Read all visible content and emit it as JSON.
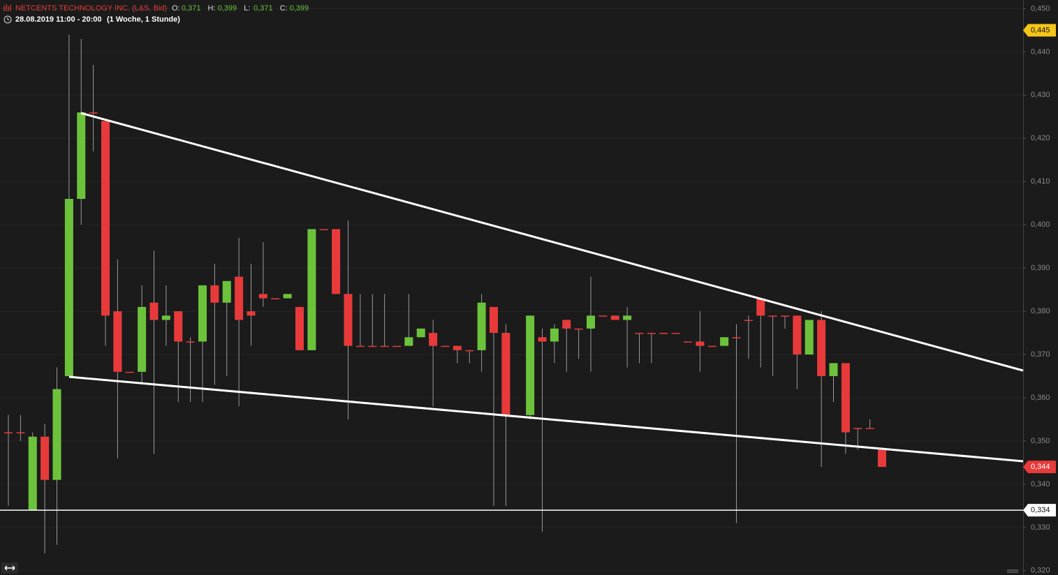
{
  "chart_data": {
    "type": "candlestick",
    "title": "NETCENTS TECHNOLOGY INC. (L&S, Bid)",
    "ohlc_header": [
      {
        "label": "O:",
        "value": "0,371"
      },
      {
        "label": "H:",
        "value": "0,399"
      },
      {
        "label": "L:",
        "value": "0,371"
      },
      {
        "label": "C:",
        "value": "0,399"
      }
    ],
    "period": "28.08.2019 11:00 - 20:00",
    "interval": "(1 Woche, 1 Stunde)",
    "up_color": "#6cc33b",
    "down_color": "#e83a3a",
    "categories": [
      null,
      null,
      null,
      null,
      null,
      null,
      null,
      null,
      null,
      null,
      null,
      null,
      null,
      null,
      null,
      null,
      null,
      null,
      null,
      null,
      null,
      null,
      null,
      null,
      null,
      null,
      null,
      null,
      null,
      null,
      null,
      null,
      null,
      null,
      null,
      null,
      null,
      null,
      null,
      null,
      null,
      null,
      null,
      null,
      null,
      null,
      null,
      null,
      null,
      null,
      null,
      null,
      null,
      null,
      null,
      null,
      null,
      null,
      null,
      null,
      null,
      null,
      null,
      null,
      null,
      null,
      null,
      null,
      null,
      null,
      null,
      null,
      null
    ],
    "open": [
      0.352,
      0.352,
      0.334,
      0.351,
      0.341,
      0.365,
      0.406,
      0.426,
      0.424,
      0.38,
      0.366,
      0.366,
      0.382,
      0.378,
      0.38,
      0.373,
      0.373,
      0.386,
      0.382,
      0.388,
      0.38,
      0.384,
      0.383,
      0.383,
      0.381,
      0.371,
      0.399,
      0.399,
      0.384,
      0.372,
      0.372,
      0.372,
      0.372,
      0.372,
      0.374,
      0.375,
      0.372,
      0.372,
      0.371,
      0.371,
      0.381,
      0.375,
      null,
      0.356,
      0.374,
      0.373,
      0.378,
      0.376,
      0.376,
      0.379,
      0.379,
      0.378,
      0.375,
      0.375,
      0.375,
      0.375,
      0.373,
      0.373,
      0.372,
      0.372,
      0.374,
      0.378,
      0.383,
      0.379,
      0.379,
      0.379,
      0.37,
      0.378,
      0.365,
      0.368,
      0.353,
      0.353,
      0.348
    ],
    "high": [
      0.356,
      0.356,
      0.352,
      0.354,
      0.367,
      0.444,
      0.443,
      0.437,
      0.424,
      0.392,
      0.366,
      0.386,
      0.394,
      0.386,
      0.38,
      0.374,
      0.386,
      0.391,
      0.387,
      0.397,
      0.391,
      0.396,
      0.383,
      0.384,
      0.381,
      0.399,
      0.399,
      0.399,
      0.401,
      0.384,
      0.384,
      0.384,
      0.372,
      0.384,
      0.376,
      0.378,
      0.372,
      0.372,
      0.371,
      0.384,
      0.381,
      0.377,
      null,
      0.379,
      0.376,
      0.377,
      0.378,
      0.376,
      0.388,
      0.379,
      0.379,
      0.381,
      0.375,
      0.375,
      0.375,
      0.375,
      0.373,
      0.38,
      0.372,
      0.374,
      0.377,
      0.379,
      0.383,
      0.379,
      0.379,
      0.379,
      0.378,
      0.38,
      0.368,
      0.368,
      0.353,
      0.355,
      0.348
    ],
    "low": [
      0.335,
      0.35,
      0.334,
      0.324,
      0.326,
      0.365,
      0.4,
      0.417,
      0.372,
      0.346,
      0.366,
      0.363,
      0.347,
      0.372,
      0.359,
      0.359,
      0.359,
      0.363,
      0.365,
      0.358,
      0.372,
      0.381,
      0.383,
      0.383,
      0.371,
      0.371,
      0.399,
      0.384,
      0.355,
      0.372,
      0.372,
      0.372,
      0.372,
      0.372,
      0.374,
      0.358,
      0.372,
      0.368,
      0.368,
      0.366,
      0.335,
      0.335,
      null,
      0.355,
      0.329,
      0.368,
      0.366,
      0.369,
      0.366,
      0.379,
      0.378,
      0.367,
      0.368,
      0.368,
      0.375,
      0.375,
      0.373,
      0.366,
      0.372,
      0.372,
      0.331,
      0.369,
      0.367,
      0.365,
      0.376,
      0.362,
      0.37,
      0.344,
      0.359,
      0.347,
      0.348,
      0.353,
      0.344
    ],
    "close": [
      0.352,
      0.352,
      0.351,
      0.341,
      0.362,
      0.406,
      0.426,
      0.426,
      0.379,
      0.366,
      0.366,
      0.381,
      0.378,
      0.379,
      0.373,
      0.373,
      0.386,
      0.382,
      0.387,
      0.378,
      0.379,
      0.383,
      0.383,
      0.384,
      0.371,
      0.399,
      0.399,
      0.384,
      0.372,
      0.372,
      0.372,
      0.372,
      0.372,
      0.374,
      0.376,
      0.372,
      0.372,
      0.371,
      0.371,
      0.382,
      0.375,
      0.356,
      null,
      0.379,
      0.373,
      0.376,
      0.376,
      0.376,
      0.379,
      0.379,
      0.378,
      0.379,
      0.375,
      0.375,
      0.375,
      0.375,
      0.373,
      0.372,
      0.372,
      0.374,
      0.374,
      0.378,
      0.379,
      0.379,
      0.379,
      0.37,
      0.378,
      0.365,
      0.368,
      0.352,
      0.353,
      0.353,
      0.344
    ],
    "ylim": [
      0.319,
      0.452
    ],
    "yticks": [
      {
        "value": 0.45,
        "label": "0,450"
      },
      {
        "value": 0.44,
        "label": "0,440"
      },
      {
        "value": 0.43,
        "label": "0,430"
      },
      {
        "value": 0.42,
        "label": "0,420"
      },
      {
        "value": 0.41,
        "label": "0,410"
      },
      {
        "value": 0.4,
        "label": "0,400"
      },
      {
        "value": 0.39,
        "label": "0,390"
      },
      {
        "value": 0.38,
        "label": "0,380"
      },
      {
        "value": 0.37,
        "label": "0,370"
      },
      {
        "value": 0.36,
        "label": "0,360"
      },
      {
        "value": 0.35,
        "label": "0,350"
      },
      {
        "value": 0.34,
        "label": "0,340"
      },
      {
        "value": 0.33,
        "label": "0,330"
      },
      {
        "value": 0.32,
        "label": "0,320"
      }
    ],
    "grid": true,
    "annotations": [
      {
        "value": 0.445,
        "label": "0,445",
        "color": "#f5c518"
      },
      {
        "value": 0.344,
        "label": "0,344",
        "color": "#e83a3a"
      },
      {
        "value": 0.334,
        "label": "0,334",
        "color": "#ffffff",
        "line": true
      }
    ]
  }
}
